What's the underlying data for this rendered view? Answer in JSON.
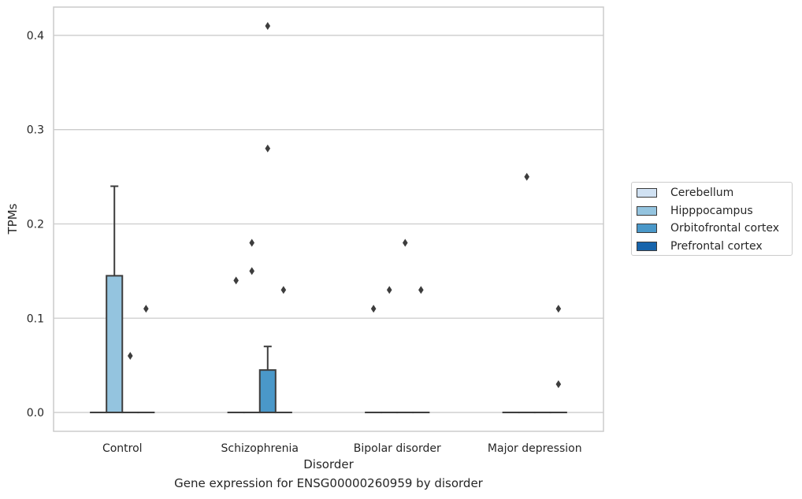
{
  "chart_data": {
    "type": "box",
    "categories": [
      "Control",
      "Schizophrenia",
      "Bipolar disorder",
      "Major depression"
    ],
    "xlabel": "Disorder",
    "ylabel": "TPMs",
    "caption": "Gene expression for ENSG00000260959 by disorder",
    "ylim": [
      -0.02,
      0.43
    ],
    "yticks": [
      0.0,
      0.1,
      0.2,
      0.3,
      0.4
    ],
    "ytick_labels": [
      "0.0",
      "0.1",
      "0.2",
      "0.3",
      "0.4"
    ],
    "grid": "horizontal",
    "legend_position": "right",
    "series": [
      {
        "name": "Cerebellum",
        "color": "#d0e1f2",
        "boxes": [
          {
            "q1": 0,
            "median": 0,
            "q3": 0,
            "whisker_low": 0,
            "whisker_high": 0,
            "outliers": []
          },
          {
            "q1": 0,
            "median": 0,
            "q3": 0,
            "whisker_low": 0,
            "whisker_high": 0,
            "outliers": [
              0.14
            ]
          },
          {
            "q1": 0,
            "median": 0,
            "q3": 0,
            "whisker_low": 0,
            "whisker_high": 0,
            "outliers": [
              0.11
            ]
          },
          {
            "q1": 0,
            "median": 0,
            "q3": 0,
            "whisker_low": 0,
            "whisker_high": 0,
            "outliers": []
          }
        ]
      },
      {
        "name": "Hipppocampus",
        "color": "#94c4df",
        "boxes": [
          {
            "q1": 0,
            "median": 0,
            "q3": 0.145,
            "whisker_low": 0,
            "whisker_high": 0.24,
            "outliers": []
          },
          {
            "q1": 0,
            "median": 0,
            "q3": 0,
            "whisker_low": 0,
            "whisker_high": 0,
            "outliers": [
              0.18,
              0.15
            ]
          },
          {
            "q1": 0,
            "median": 0,
            "q3": 0,
            "whisker_low": 0,
            "whisker_high": 0,
            "outliers": [
              0.13
            ]
          },
          {
            "q1": 0,
            "median": 0,
            "q3": 0,
            "whisker_low": 0,
            "whisker_high": 0,
            "outliers": [
              0.25
            ]
          }
        ]
      },
      {
        "name": "Orbitofrontal cortex",
        "color": "#4a98c9",
        "boxes": [
          {
            "q1": 0,
            "median": 0,
            "q3": 0,
            "whisker_low": 0,
            "whisker_high": 0,
            "outliers": [
              0.06
            ]
          },
          {
            "q1": 0,
            "median": 0,
            "q3": 0.045,
            "whisker_low": 0,
            "whisker_high": 0.07,
            "outliers": [
              0.41,
              0.28
            ]
          },
          {
            "q1": 0,
            "median": 0,
            "q3": 0,
            "whisker_low": 0,
            "whisker_high": 0,
            "outliers": [
              0.18
            ]
          },
          {
            "q1": 0,
            "median": 0,
            "q3": 0,
            "whisker_low": 0,
            "whisker_high": 0,
            "outliers": []
          }
        ]
      },
      {
        "name": "Prefrontal cortex",
        "color": "#1764ab",
        "boxes": [
          {
            "q1": 0,
            "median": 0,
            "q3": 0,
            "whisker_low": 0,
            "whisker_high": 0,
            "outliers": [
              0.11
            ]
          },
          {
            "q1": 0,
            "median": 0,
            "q3": 0,
            "whisker_low": 0,
            "whisker_high": 0,
            "outliers": [
              0.13
            ]
          },
          {
            "q1": 0,
            "median": 0,
            "q3": 0,
            "whisker_low": 0,
            "whisker_high": 0,
            "outliers": [
              0.13
            ]
          },
          {
            "q1": 0,
            "median": 0,
            "q3": 0,
            "whisker_low": 0,
            "whisker_high": 0,
            "outliers": [
              0.11,
              0.03
            ]
          }
        ]
      }
    ]
  }
}
